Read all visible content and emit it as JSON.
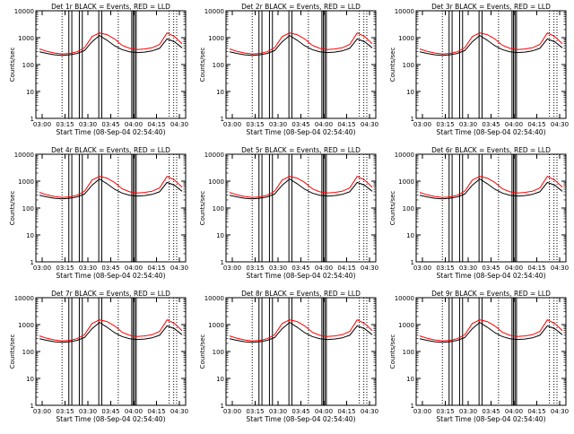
{
  "chart_data": [
    {
      "type": "line",
      "title": "Det 1r BLACK = Events, RED = LLD",
      "xlabel": "Start Time (08-Sep-04 02:54:40)",
      "ylabel": "Counts/sec",
      "x_ticks": [
        "03:00",
        "03:15",
        "03:30",
        "03:45",
        "04:00",
        "04:15",
        "04:30"
      ],
      "y_ticks": [
        "1",
        "10",
        "100",
        "1000",
        "10000"
      ],
      "ylim": [
        1,
        10000
      ],
      "yscale": "log",
      "series": [
        {
          "color": "#000000",
          "values": [
            300,
            260,
            230,
            220,
            230,
            260,
            330,
            700,
            1200,
            800,
            500,
            360,
            300,
            280,
            290,
            320,
            400,
            900,
            700,
            420
          ]
        },
        {
          "color": "#ff0000",
          "values": [
            380,
            310,
            270,
            250,
            260,
            300,
            420,
            1100,
            1500,
            1300,
            900,
            520,
            400,
            360,
            380,
            420,
            560,
            1500,
            1100,
            600
          ]
        }
      ]
    },
    {
      "type": "line",
      "title": "Det 2r BLACK = Events, RED = LLD",
      "xlabel": "Start Time (08-Sep-04 02:54:40)",
      "ylabel": "Counts/sec",
      "x_ticks": [
        "03:00",
        "03:15",
        "03:30",
        "03:45",
        "04:00",
        "04:15",
        "04:30"
      ],
      "y_ticks": [
        "1",
        "10",
        "100",
        "1000",
        "10000"
      ],
      "ylim": [
        1,
        10000
      ],
      "yscale": "log",
      "series": [
        {
          "color": "#000000",
          "values": [
            300,
            260,
            230,
            220,
            230,
            260,
            330,
            700,
            1200,
            800,
            500,
            360,
            300,
            280,
            290,
            320,
            400,
            900,
            700,
            420
          ]
        },
        {
          "color": "#ff0000",
          "values": [
            380,
            310,
            270,
            250,
            260,
            300,
            420,
            1100,
            1500,
            1300,
            900,
            520,
            400,
            360,
            380,
            420,
            560,
            1500,
            1100,
            600
          ]
        }
      ]
    },
    {
      "type": "line",
      "title": "Det 3r BLACK = Events, RED = LLD",
      "xlabel": "Start Time (08-Sep-04 02:54:40)",
      "ylabel": "Counts/sec",
      "x_ticks": [
        "03:00",
        "03:15",
        "03:30",
        "03:45",
        "04:00",
        "04:15",
        "04:30"
      ],
      "y_ticks": [
        "1",
        "10",
        "100",
        "1000",
        "10000"
      ],
      "ylim": [
        1,
        10000
      ],
      "yscale": "log",
      "series": [
        {
          "color": "#000000",
          "values": [
            300,
            260,
            230,
            220,
            230,
            260,
            330,
            700,
            1200,
            800,
            500,
            360,
            300,
            280,
            290,
            320,
            400,
            900,
            700,
            420
          ]
        },
        {
          "color": "#ff0000",
          "values": [
            380,
            310,
            270,
            250,
            260,
            300,
            420,
            1100,
            1500,
            1300,
            900,
            520,
            400,
            360,
            380,
            420,
            560,
            1500,
            1100,
            600
          ]
        }
      ]
    },
    {
      "type": "line",
      "title": "Det 4r BLACK = Events, RED = LLD",
      "xlabel": "Start Time (08-Sep-04 02:54:40)",
      "ylabel": "Counts/sec",
      "x_ticks": [
        "03:00",
        "03:15",
        "03:30",
        "03:45",
        "04:00",
        "04:15",
        "04:30"
      ],
      "y_ticks": [
        "1",
        "10",
        "100",
        "1000",
        "10000"
      ],
      "ylim": [
        1,
        10000
      ],
      "yscale": "log",
      "series": [
        {
          "color": "#000000",
          "values": [
            300,
            260,
            230,
            220,
            230,
            260,
            330,
            700,
            1200,
            800,
            500,
            360,
            300,
            280,
            290,
            320,
            400,
            900,
            700,
            420
          ]
        },
        {
          "color": "#ff0000",
          "values": [
            380,
            310,
            270,
            250,
            260,
            300,
            420,
            1100,
            1500,
            1300,
            900,
            520,
            400,
            360,
            380,
            420,
            560,
            1500,
            1100,
            600
          ]
        }
      ]
    },
    {
      "type": "line",
      "title": "Det 5r BLACK = Events, RED = LLD",
      "xlabel": "Start Time (08-Sep-04 02:54:40)",
      "ylabel": "Counts/sec",
      "x_ticks": [
        "03:00",
        "03:15",
        "03:30",
        "03:45",
        "04:00",
        "04:15",
        "04:30"
      ],
      "y_ticks": [
        "1",
        "10",
        "100",
        "1000",
        "10000"
      ],
      "ylim": [
        1,
        10000
      ],
      "yscale": "log",
      "series": [
        {
          "color": "#000000",
          "values": [
            300,
            260,
            230,
            220,
            230,
            260,
            330,
            700,
            1200,
            800,
            500,
            360,
            300,
            280,
            290,
            320,
            400,
            900,
            700,
            420
          ]
        },
        {
          "color": "#ff0000",
          "values": [
            380,
            310,
            270,
            250,
            260,
            300,
            420,
            1100,
            1500,
            1300,
            900,
            520,
            400,
            360,
            380,
            420,
            560,
            1500,
            1100,
            600
          ]
        }
      ]
    },
    {
      "type": "line",
      "title": "Det 6r BLACK = Events, RED = LLD",
      "xlabel": "Start Time (08-Sep-04 02:54:40)",
      "ylabel": "Counts/sec",
      "x_ticks": [
        "03:00",
        "03:15",
        "03:30",
        "03:45",
        "04:00",
        "04:15",
        "04:30"
      ],
      "y_ticks": [
        "1",
        "10",
        "100",
        "1000",
        "10000"
      ],
      "ylim": [
        1,
        10000
      ],
      "yscale": "log",
      "series": [
        {
          "color": "#000000",
          "values": [
            300,
            260,
            230,
            220,
            230,
            260,
            330,
            700,
            1200,
            800,
            500,
            360,
            300,
            280,
            290,
            320,
            400,
            900,
            700,
            420
          ]
        },
        {
          "color": "#ff0000",
          "values": [
            380,
            310,
            270,
            250,
            260,
            300,
            420,
            1100,
            1500,
            1300,
            900,
            520,
            400,
            360,
            380,
            420,
            560,
            1500,
            1100,
            600
          ]
        }
      ]
    },
    {
      "type": "line",
      "title": "Det 7r BLACK = Events, RED = LLD",
      "xlabel": "Start Time (08-Sep-04 02:54:40)",
      "ylabel": "Counts/sec",
      "x_ticks": [
        "03:00",
        "03:15",
        "03:30",
        "03:45",
        "04:00",
        "04:15",
        "04:30"
      ],
      "y_ticks": [
        "1",
        "10",
        "100",
        "1000",
        "10000"
      ],
      "ylim": [
        1,
        10000
      ],
      "yscale": "log",
      "series": [
        {
          "color": "#000000",
          "values": [
            300,
            260,
            230,
            220,
            230,
            260,
            330,
            700,
            1200,
            800,
            500,
            360,
            300,
            280,
            290,
            320,
            400,
            900,
            700,
            420
          ]
        },
        {
          "color": "#ff0000",
          "values": [
            380,
            310,
            270,
            250,
            260,
            300,
            420,
            1100,
            1500,
            1300,
            900,
            520,
            400,
            360,
            380,
            420,
            560,
            1500,
            1100,
            600
          ]
        }
      ]
    },
    {
      "type": "line",
      "title": "Det 8r BLACK = Events, RED = LLD",
      "xlabel": "Start Time (08-Sep-04 02:54:40)",
      "ylabel": "Counts/sec",
      "x_ticks": [
        "03:00",
        "03:15",
        "03:30",
        "03:45",
        "04:00",
        "04:15",
        "04:30"
      ],
      "y_ticks": [
        "1",
        "10",
        "100",
        "1000",
        "10000"
      ],
      "ylim": [
        1,
        10000
      ],
      "yscale": "log",
      "series": [
        {
          "color": "#000000",
          "values": [
            300,
            260,
            230,
            220,
            230,
            260,
            330,
            700,
            1200,
            800,
            500,
            360,
            300,
            280,
            290,
            320,
            400,
            900,
            700,
            420
          ]
        },
        {
          "color": "#ff0000",
          "values": [
            380,
            310,
            270,
            250,
            260,
            300,
            420,
            1100,
            1500,
            1300,
            900,
            520,
            400,
            360,
            380,
            420,
            560,
            1500,
            1100,
            600
          ]
        }
      ]
    },
    {
      "type": "line",
      "title": "Det 9r BLACK = Events, RED = LLD",
      "xlabel": "Start Time (08-Sep-04 02:54:40)",
      "ylabel": "Counts/sec",
      "x_ticks": [
        "03:00",
        "03:15",
        "03:30",
        "03:45",
        "04:00",
        "04:15",
        "04:30"
      ],
      "y_ticks": [
        "1",
        "10",
        "100",
        "1000",
        "10000"
      ],
      "ylim": [
        1,
        10000
      ],
      "yscale": "log",
      "series": [
        {
          "color": "#000000",
          "values": [
            300,
            260,
            230,
            220,
            230,
            260,
            330,
            700,
            1200,
            800,
            500,
            360,
            300,
            280,
            290,
            320,
            400,
            900,
            700,
            420
          ]
        },
        {
          "color": "#ff0000",
          "values": [
            380,
            310,
            270,
            250,
            260,
            300,
            420,
            1100,
            1500,
            1300,
            900,
            520,
            400,
            360,
            380,
            420,
            560,
            1500,
            1100,
            600
          ]
        }
      ]
    }
  ]
}
